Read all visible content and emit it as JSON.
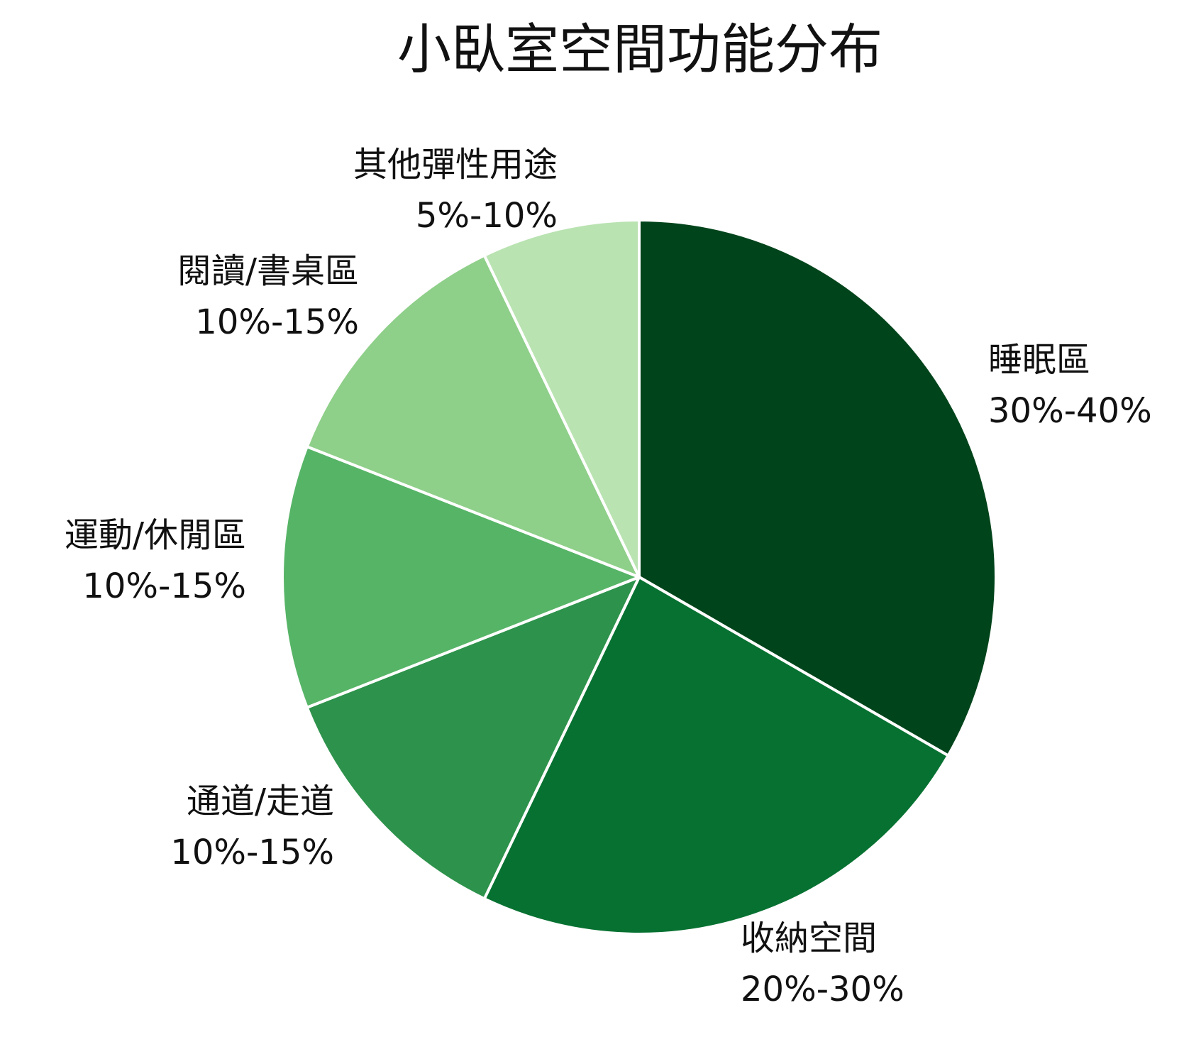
{
  "chart_data": {
    "type": "pie",
    "title": "小臥室空間功能分布",
    "slices": [
      {
        "name": "睡眠區",
        "range": "30%-40%",
        "value": 35,
        "color": "#00441b"
      },
      {
        "name": "收納空間",
        "range": "20%-30%",
        "value": 25,
        "color": "#067131"
      },
      {
        "name": "通道/走道",
        "range": "10%-15%",
        "value": 12.5,
        "color": "#2d924b"
      },
      {
        "name": "運動/休閒區",
        "range": "10%-15%",
        "value": 12.5,
        "color": "#56b466"
      },
      {
        "name": "閱讀/書桌區",
        "range": "10%-15%",
        "value": 12.5,
        "color": "#8ecf89"
      },
      {
        "name": "其他彈性用途",
        "range": "5%-10%",
        "value": 7.5,
        "color": "#b9e3b1"
      }
    ],
    "start": "12 o'clock",
    "direction": "clockwise",
    "separator_color": "#ffffff"
  }
}
